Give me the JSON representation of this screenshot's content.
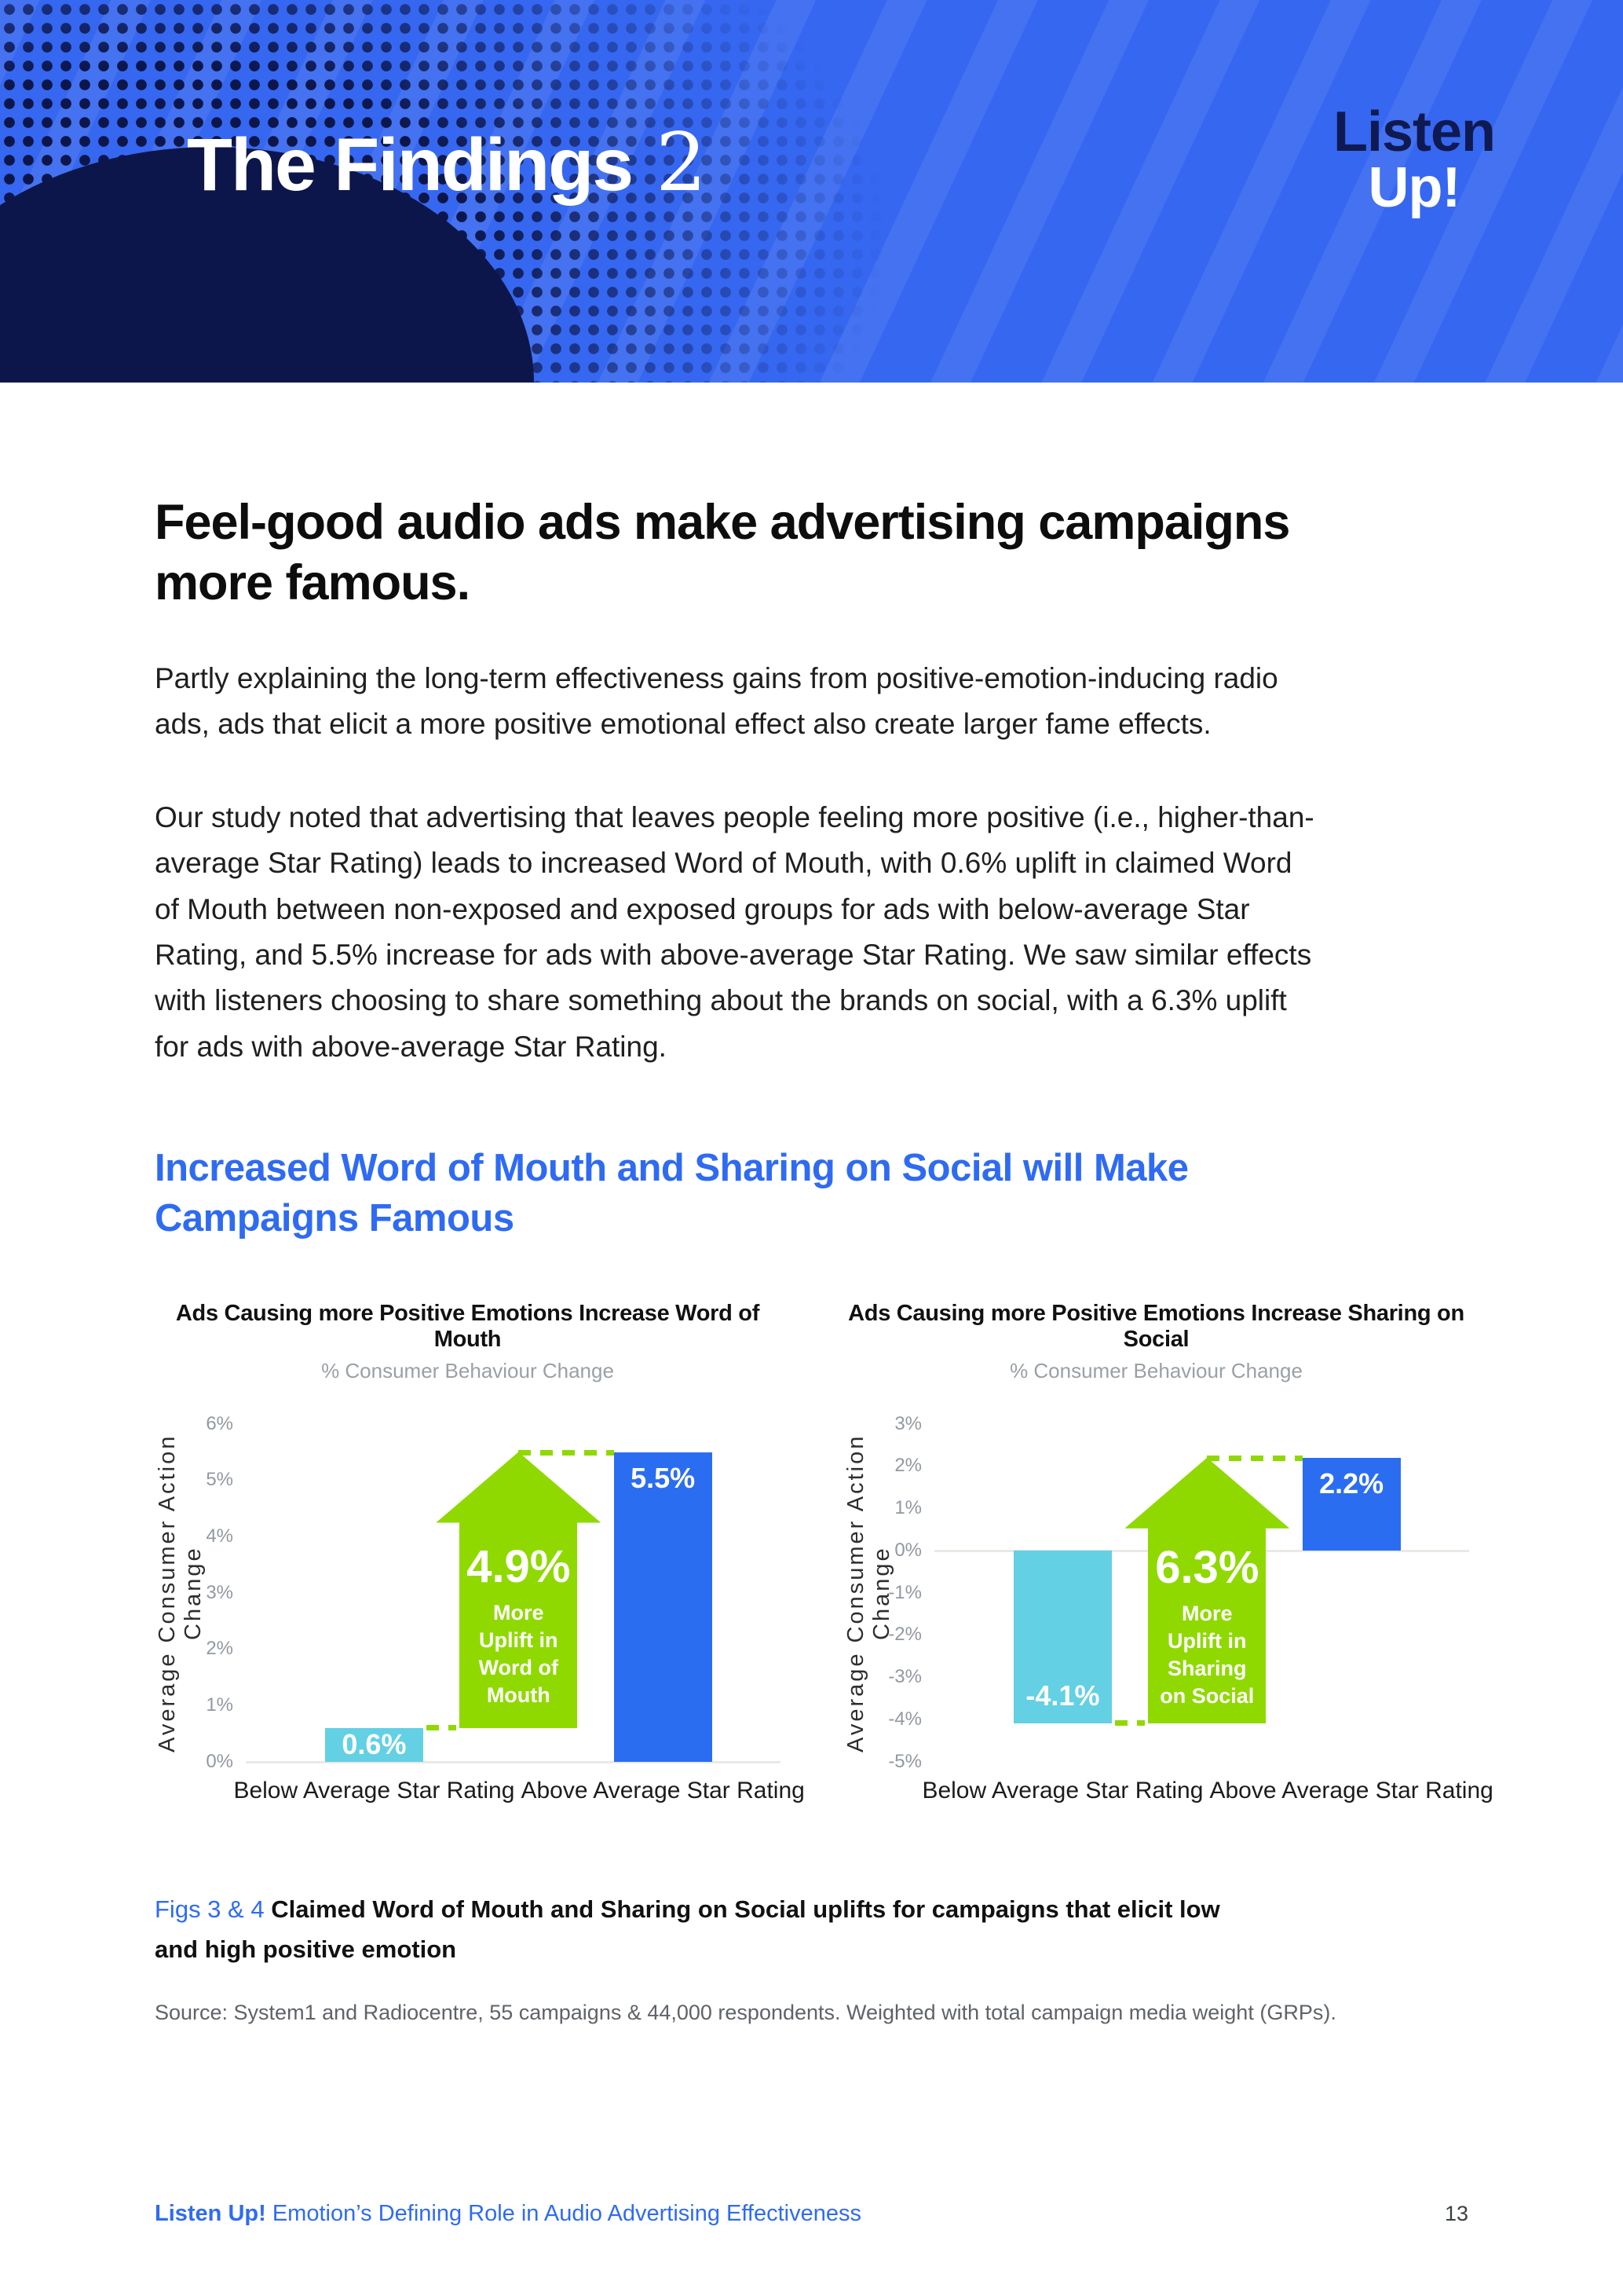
{
  "header": {
    "title_main": "The Findings",
    "title_number": "2",
    "logo_line1": "Listen",
    "logo_line2": "Up!"
  },
  "main": {
    "heading": "Feel-good audio ads make advertising campaigns more famous.",
    "paragraph1": "Partly explaining the long-term effectiveness gains from positive-emotion-inducing radio ads, ads that elicit a more positive emotional effect also create larger fame effects.",
    "paragraph2": "Our study noted that advertising that leaves people feeling more positive (i.e., higher-than-average Star Rating) leads to increased Word of Mouth, with 0.6% uplift in claimed Word of Mouth between non-exposed and exposed groups for ads with below-average Star Rating, and 5.5% increase for ads with above-average Star Rating. We saw similar effects with listeners choosing to share something about the brands on social, with a 6.3% uplift for ads with above-average Star Rating.",
    "subheading": "Increased Word of Mouth and Sharing on Social will Make Campaigns Famous"
  },
  "chart_data": [
    {
      "type": "bar",
      "title": "Ads Causing more Positive Emotions Increase Word of Mouth",
      "subtitle": "% Consumer Behaviour Change",
      "y_axis_label": "Average Consumer Action Change",
      "x_categories": [
        "Below Average Star Rating",
        "Above Average Star Rating"
      ],
      "values": [
        0.6,
        5.5
      ],
      "bar_labels": [
        "0.6%",
        "5.5%"
      ],
      "bar_colors": [
        "cyan",
        "blue"
      ],
      "bar_label_pos": [
        "center",
        "top"
      ],
      "ylim": [
        0,
        6
      ],
      "ticks": [
        6,
        5,
        4,
        3,
        2,
        1,
        0
      ],
      "tick_suffix": "%",
      "grid": false,
      "annotation_arrow": {
        "from": 0.6,
        "to": 5.5,
        "label": "4.9%",
        "sublabel": "More Uplift in Word of Mouth"
      }
    },
    {
      "type": "bar",
      "title": "Ads Causing more Positive Emotions Increase Sharing on Social",
      "subtitle": "% Consumer Behaviour Change",
      "y_axis_label": "Average Consumer Action Change",
      "x_categories": [
        "Below Average Star Rating",
        "Above Average Star Rating"
      ],
      "values": [
        -4.1,
        2.2
      ],
      "bar_labels": [
        "-4.1%",
        "2.2%"
      ],
      "bar_colors": [
        "cyan",
        "blue"
      ],
      "bar_label_pos": [
        "bottom",
        "top"
      ],
      "ylim": [
        -5,
        3
      ],
      "ticks": [
        3,
        2,
        1,
        0,
        -1,
        -2,
        -3,
        -4,
        -5
      ],
      "tick_suffix": "%",
      "grid": false,
      "annotation_arrow": {
        "from": -4.1,
        "to": 2.2,
        "label": "6.3%",
        "sublabel": "More Uplift in Sharing on Social"
      }
    }
  ],
  "caption": {
    "figs_label": "Figs 3 & 4",
    "text": "Claimed Word of Mouth and Sharing on Social uplifts for campaigns that elicit low and high positive emotion",
    "source": "Source: System1 and Radiocentre, 55 campaigns & 44,000 respondents. Weighted with total campaign media weight (GRPs)."
  },
  "footer": {
    "brand": "Listen Up!",
    "subtitle": "Emotion’s Defining Role in Audio Advertising Effectiveness",
    "page_number": "13"
  },
  "colors": {
    "header_blue": "#3667f0",
    "logo_navy": "#101a52",
    "accent_blue": "#2f6bf2",
    "bar_blue": "#2b6df0",
    "bar_cyan": "#63d0e4",
    "arrow_green": "#8fd900",
    "tick_gray": "#9298a0",
    "subtitle_gray": "#9aa0a6",
    "source_gray": "#5f6368"
  }
}
